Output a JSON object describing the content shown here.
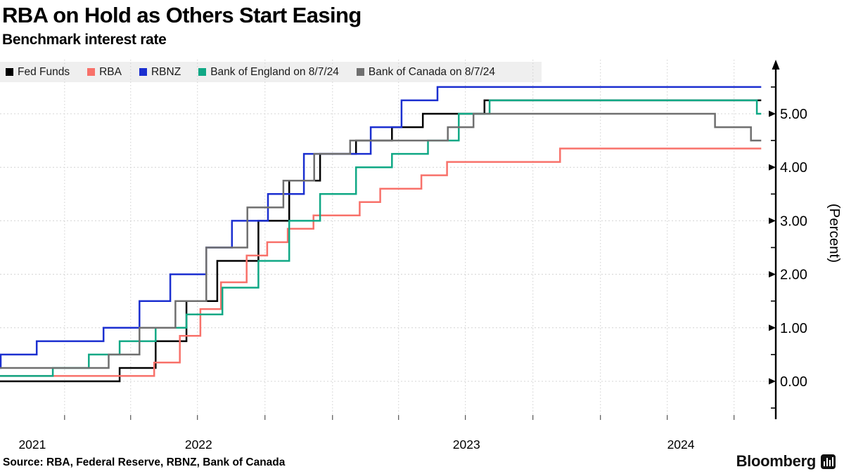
{
  "header": {
    "title": "RBA on Hold as Others Start Easing",
    "subtitle": "Benchmark interest rate"
  },
  "footer": {
    "source": "Source: RBA, Federal Reserve, RBNZ, Bank of Canada",
    "brand": "Bloomberg"
  },
  "colors": {
    "fed": "#000000",
    "rba": "#f8716a",
    "rbnz": "#1b2fd0",
    "boe": "#10a885",
    "boc": "#6f6f6f",
    "legend_bg": "#efefef",
    "grid": "#cfcfcf",
    "axis": "#000000"
  },
  "chart_data": {
    "type": "line",
    "step": true,
    "title": "RBA on Hold as Others Start Easing",
    "subtitle": "Benchmark interest rate",
    "ylabel": "(Percent)",
    "ylim": [
      -0.75,
      5.9
    ],
    "y_major_ticks": [
      0,
      1,
      2,
      3,
      4,
      5
    ],
    "y_tick_labels": [
      "0.00",
      "1.00",
      "2.00",
      "3.00",
      "4.00",
      "5.00"
    ],
    "y_minor_ticks": [
      -0.5,
      0.5,
      1.5,
      2.5,
      3.5,
      4.5,
      5.5
    ],
    "x_start": "2021-10-05",
    "x_end": "2024-08-07",
    "x_quarter_gridlines": [
      "2022-01-01",
      "2022-04-01",
      "2022-07-01",
      "2022-10-01",
      "2023-01-01",
      "2023-04-01",
      "2023-07-01",
      "2023-10-01",
      "2024-01-01",
      "2024-04-01",
      "2024-07-01"
    ],
    "x_year_labels": [
      "2021",
      "2022",
      "2023",
      "2024"
    ],
    "grid": "dotted",
    "legend_position": "top-left",
    "series": [
      {
        "name": "Fed Funds",
        "color": "#000000",
        "start_value": 0.0,
        "steps": [
          [
            "2022-03-17",
            0.25
          ],
          [
            "2022-05-05",
            0.75
          ],
          [
            "2022-06-16",
            1.5
          ],
          [
            "2022-07-28",
            2.25
          ],
          [
            "2022-09-22",
            3.0
          ],
          [
            "2022-11-03",
            3.75
          ],
          [
            "2022-12-15",
            4.25
          ],
          [
            "2023-02-02",
            4.5
          ],
          [
            "2023-03-23",
            4.75
          ],
          [
            "2023-05-04",
            5.0
          ],
          [
            "2023-07-27",
            5.25
          ]
        ]
      },
      {
        "name": "RBA",
        "color": "#f8716a",
        "start_value": 0.1,
        "steps": [
          [
            "2022-05-03",
            0.35
          ],
          [
            "2022-06-07",
            0.85
          ],
          [
            "2022-07-05",
            1.35
          ],
          [
            "2022-08-02",
            1.85
          ],
          [
            "2022-09-06",
            2.35
          ],
          [
            "2022-10-04",
            2.6
          ],
          [
            "2022-11-01",
            2.85
          ],
          [
            "2022-12-06",
            3.1
          ],
          [
            "2023-02-07",
            3.35
          ],
          [
            "2023-03-07",
            3.6
          ],
          [
            "2023-05-02",
            3.85
          ],
          [
            "2023-06-06",
            4.1
          ],
          [
            "2023-11-07",
            4.35
          ]
        ]
      },
      {
        "name": "RBNZ",
        "color": "#1b2fd0",
        "start_value": 0.25,
        "steps": [
          [
            "2021-10-06",
            0.5
          ],
          [
            "2021-11-24",
            0.75
          ],
          [
            "2022-02-23",
            1.0
          ],
          [
            "2022-04-13",
            1.5
          ],
          [
            "2022-05-25",
            2.0
          ],
          [
            "2022-07-13",
            2.5
          ],
          [
            "2022-08-17",
            3.0
          ],
          [
            "2022-10-05",
            3.5
          ],
          [
            "2022-11-23",
            4.25
          ],
          [
            "2023-02-22",
            4.75
          ],
          [
            "2023-04-05",
            5.25
          ],
          [
            "2023-05-24",
            5.5
          ]
        ]
      },
      {
        "name": "Bank of England on 8/7/24",
        "color": "#10a885",
        "start_value": 0.1,
        "steps": [
          [
            "2021-12-16",
            0.25
          ],
          [
            "2022-02-03",
            0.5
          ],
          [
            "2022-03-17",
            0.75
          ],
          [
            "2022-05-05",
            1.0
          ],
          [
            "2022-06-16",
            1.25
          ],
          [
            "2022-08-04",
            1.75
          ],
          [
            "2022-09-22",
            2.25
          ],
          [
            "2022-11-03",
            3.0
          ],
          [
            "2022-12-15",
            3.5
          ],
          [
            "2023-02-02",
            4.0
          ],
          [
            "2023-03-23",
            4.25
          ],
          [
            "2023-05-11",
            4.5
          ],
          [
            "2023-06-22",
            5.0
          ],
          [
            "2023-08-03",
            5.25
          ],
          [
            "2024-08-01",
            5.0
          ]
        ]
      },
      {
        "name": "Bank of Canada on 8/7/24",
        "color": "#6f6f6f",
        "start_value": 0.25,
        "steps": [
          [
            "2022-03-02",
            0.5
          ],
          [
            "2022-04-13",
            1.0
          ],
          [
            "2022-06-01",
            1.5
          ],
          [
            "2022-07-13",
            2.5
          ],
          [
            "2022-09-07",
            3.25
          ],
          [
            "2022-10-26",
            3.75
          ],
          [
            "2022-12-07",
            4.25
          ],
          [
            "2023-01-25",
            4.5
          ],
          [
            "2023-06-07",
            4.75
          ],
          [
            "2023-07-12",
            5.0
          ],
          [
            "2024-06-05",
            4.75
          ],
          [
            "2024-07-24",
            4.5
          ]
        ]
      }
    ]
  }
}
